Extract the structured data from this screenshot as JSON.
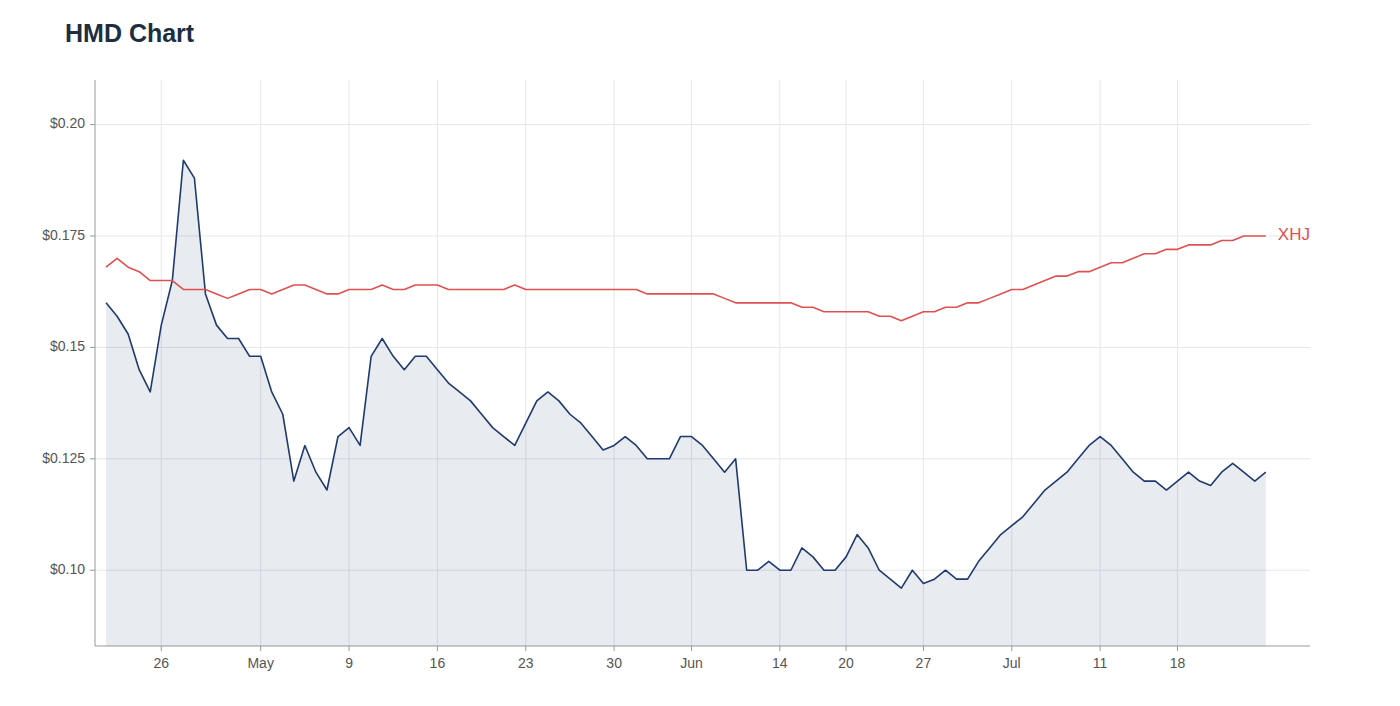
{
  "chart_data": {
    "type": "line",
    "title": "HMD Chart",
    "categories": [
      null,
      null,
      null,
      null,
      null,
      "26",
      null,
      null,
      null,
      null,
      null,
      null,
      null,
      null,
      "May",
      null,
      null,
      null,
      null,
      null,
      null,
      null,
      "9",
      null,
      null,
      null,
      null,
      null,
      null,
      null,
      "16",
      null,
      null,
      null,
      null,
      null,
      null,
      null,
      "23",
      null,
      null,
      null,
      null,
      null,
      null,
      null,
      "30",
      null,
      null,
      null,
      null,
      null,
      null,
      "Jun",
      null,
      null,
      null,
      null,
      null,
      null,
      null,
      "14",
      null,
      null,
      null,
      null,
      null,
      "20",
      null,
      null,
      null,
      null,
      null,
      null,
      "27",
      null,
      null,
      null,
      null,
      null,
      null,
      null,
      "Jul",
      null,
      null,
      null,
      null,
      null,
      null,
      null,
      "11",
      null,
      null,
      null,
      null,
      null,
      null,
      "18",
      null,
      null,
      null,
      null,
      null,
      null,
      null,
      null
    ],
    "series": [
      {
        "type": "area",
        "color": "#1f3a6e",
        "values": [
          0.16,
          0.157,
          0.153,
          0.145,
          0.14,
          0.155,
          0.165,
          0.192,
          0.188,
          0.162,
          0.155,
          0.152,
          0.152,
          0.148,
          0.148,
          0.14,
          0.135,
          0.12,
          0.128,
          0.122,
          0.118,
          0.13,
          0.132,
          0.128,
          0.148,
          0.152,
          0.148,
          0.145,
          0.148,
          0.148,
          0.145,
          0.142,
          0.14,
          0.138,
          0.135,
          0.132,
          0.13,
          0.128,
          0.133,
          0.138,
          0.14,
          0.138,
          0.135,
          0.133,
          0.13,
          0.127,
          0.128,
          0.13,
          0.128,
          0.125,
          0.125,
          0.125,
          0.13,
          0.13,
          0.128,
          0.125,
          0.122,
          0.125,
          0.1,
          0.1,
          0.102,
          0.1,
          0.1,
          0.105,
          0.103,
          0.1,
          0.1,
          0.103,
          0.108,
          0.105,
          0.1,
          0.098,
          0.096,
          0.1,
          0.097,
          0.098,
          0.1,
          0.098,
          0.098,
          0.102,
          0.105,
          0.108,
          0.11,
          0.112,
          0.115,
          0.118,
          0.12,
          0.122,
          0.125,
          0.128,
          0.13,
          0.128,
          0.125,
          0.122,
          0.12,
          0.12,
          0.118,
          0.12,
          0.122,
          0.12,
          0.119,
          0.122,
          0.124,
          0.122,
          0.12,
          0.122
        ]
      },
      {
        "type": "line",
        "name": "XHJ",
        "color": "#e05050",
        "values": [
          0.168,
          0.17,
          0.168,
          0.167,
          0.165,
          0.165,
          0.165,
          0.163,
          0.163,
          0.163,
          0.162,
          0.161,
          0.162,
          0.163,
          0.163,
          0.162,
          0.163,
          0.164,
          0.164,
          0.163,
          0.162,
          0.162,
          0.163,
          0.163,
          0.163,
          0.164,
          0.163,
          0.163,
          0.164,
          0.164,
          0.164,
          0.163,
          0.163,
          0.163,
          0.163,
          0.163,
          0.163,
          0.164,
          0.163,
          0.163,
          0.163,
          0.163,
          0.163,
          0.163,
          0.163,
          0.163,
          0.163,
          0.163,
          0.163,
          0.162,
          0.162,
          0.162,
          0.162,
          0.162,
          0.162,
          0.162,
          0.161,
          0.16,
          0.16,
          0.16,
          0.16,
          0.16,
          0.16,
          0.159,
          0.159,
          0.158,
          0.158,
          0.158,
          0.158,
          0.158,
          0.157,
          0.157,
          0.156,
          0.157,
          0.158,
          0.158,
          0.159,
          0.159,
          0.16,
          0.16,
          0.161,
          0.162,
          0.163,
          0.163,
          0.164,
          0.165,
          0.166,
          0.166,
          0.167,
          0.167,
          0.168,
          0.169,
          0.169,
          0.17,
          0.171,
          0.171,
          0.172,
          0.172,
          0.173,
          0.173,
          0.173,
          0.174,
          0.174,
          0.175,
          0.175,
          0.175
        ]
      }
    ],
    "ylim": [
      0.083,
      0.21
    ],
    "yticks": [
      {
        "value": 0.1,
        "label": "$0.10"
      },
      {
        "value": 0.125,
        "label": "$0.125"
      },
      {
        "value": 0.15,
        "label": "$0.15"
      },
      {
        "value": 0.175,
        "label": "$0.175"
      },
      {
        "value": 0.2,
        "label": "$0.20"
      }
    ],
    "grid": true
  }
}
